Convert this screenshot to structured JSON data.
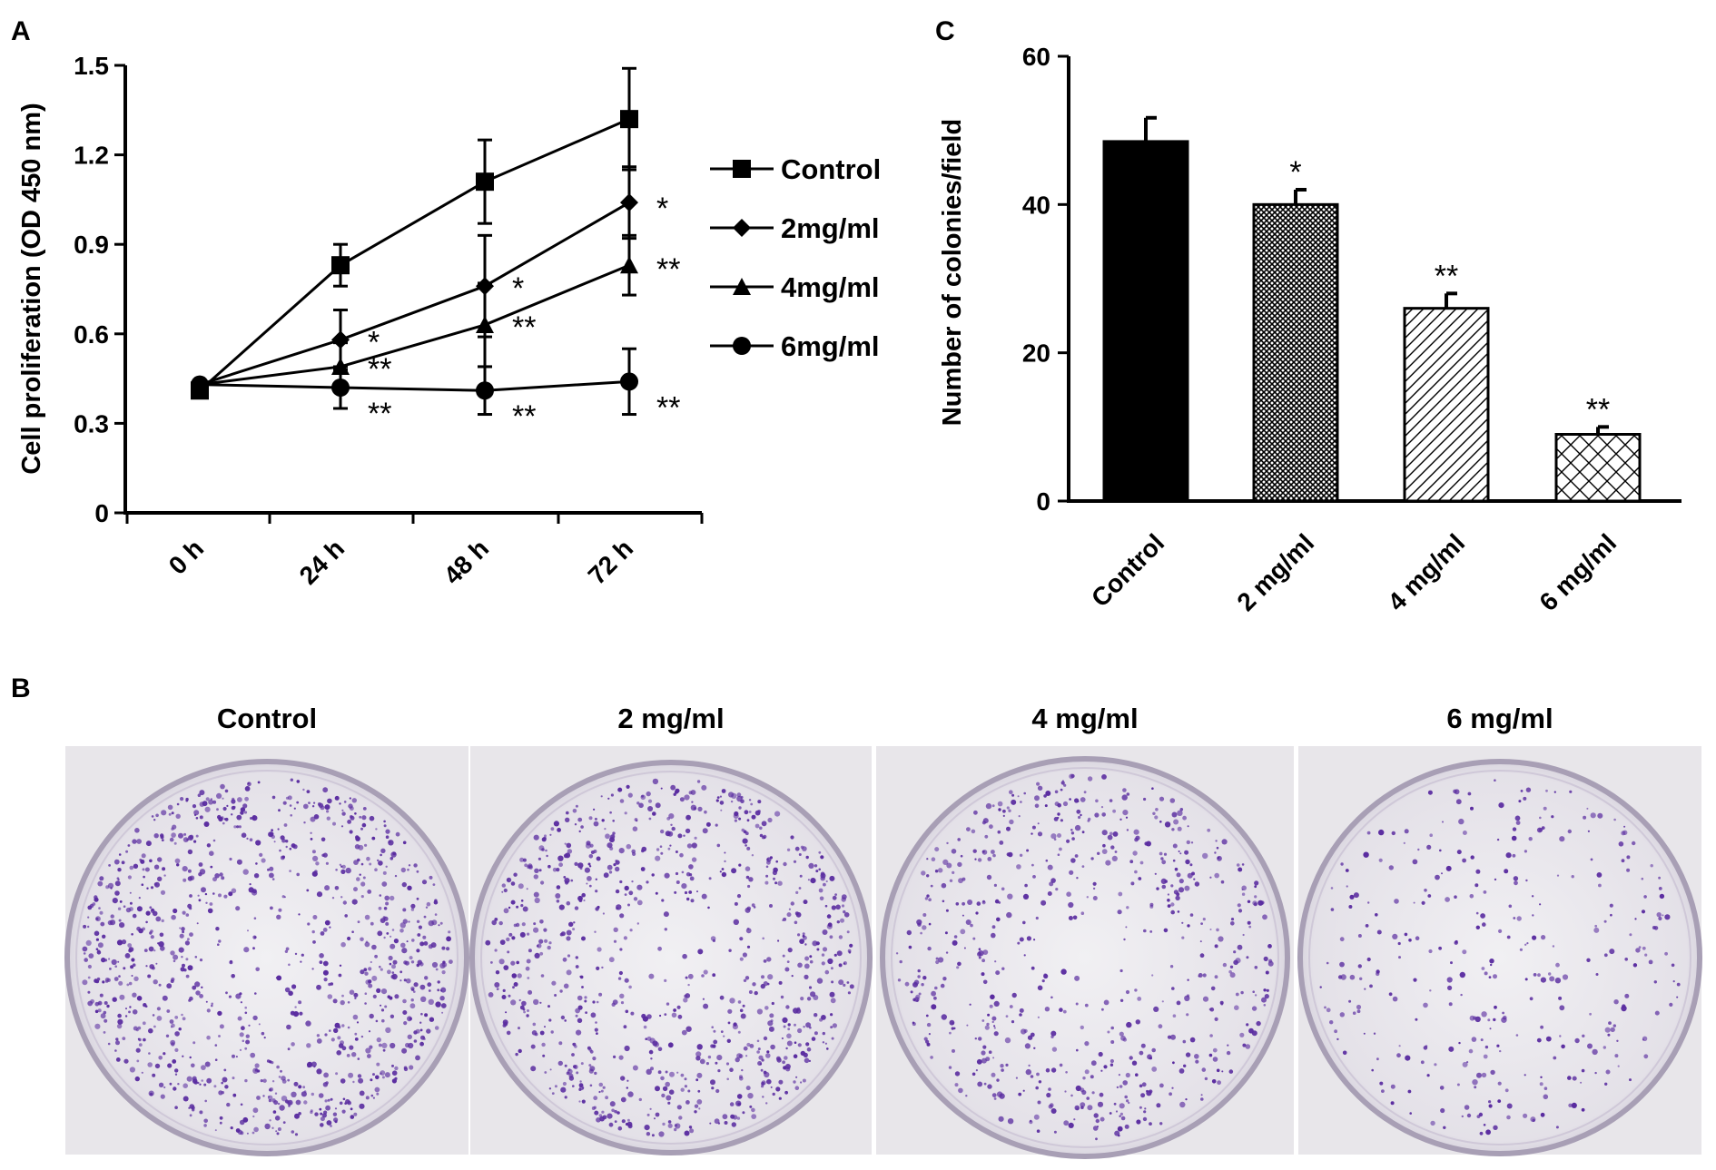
{
  "panels": {
    "A": {
      "label": "A"
    },
    "B": {
      "label": "B",
      "dishes": [
        {
          "title": "Control",
          "density": 0.95
        },
        {
          "title": "2 mg/ml",
          "density": 0.8
        },
        {
          "title": "4 mg/ml",
          "density": 0.55
        },
        {
          "title": "6 mg/ml",
          "density": 0.2
        }
      ]
    },
    "C": {
      "label": "C"
    }
  },
  "colors": {
    "line": "#000000",
    "stain": "#5a2ca0",
    "plate_bg": "#e8e6ea"
  },
  "chart_data": [
    {
      "type": "line",
      "panel": "A",
      "ylabel": "Cell proliferation  (OD 450 nm)",
      "xlabel": "",
      "categories": [
        "0 h",
        "24 h",
        "48 h",
        "72 h"
      ],
      "x_tick_count": 4,
      "ylim": [
        0,
        1.5
      ],
      "yticks": [
        "0",
        "0.3",
        "0.6",
        "0.9",
        "1.2",
        "1.5"
      ],
      "grid": false,
      "legend_position": "right",
      "series": [
        {
          "name": "Control",
          "marker": "square",
          "values": [
            0.41,
            0.83,
            1.11,
            1.32
          ],
          "errors": [
            0,
            0.07,
            0.14,
            0.17
          ],
          "sig": [
            "",
            "",
            "",
            ""
          ]
        },
        {
          "name": "2mg/ml",
          "marker": "diamond",
          "values": [
            0.43,
            0.58,
            0.76,
            1.04
          ],
          "errors": [
            0,
            0.1,
            0.17,
            0.12
          ],
          "sig": [
            "",
            "*",
            "*",
            "*"
          ]
        },
        {
          "name": "4mg/ml",
          "marker": "triangle",
          "values": [
            0.43,
            0.49,
            0.63,
            0.83
          ],
          "errors": [
            0,
            0.08,
            0.14,
            0.1
          ],
          "sig": [
            "",
            "**",
            "**",
            "**"
          ]
        },
        {
          "name": "6mg/ml",
          "marker": "circle",
          "values": [
            0.43,
            0.42,
            0.41,
            0.44
          ],
          "errors": [
            0,
            0.07,
            0.08,
            0.11
          ],
          "sig": [
            "",
            "**",
            "**",
            "**"
          ]
        }
      ]
    },
    {
      "type": "bar",
      "panel": "C",
      "ylabel": "Number of colonies/field",
      "xlabel": "",
      "categories": [
        "Control",
        "2 mg/ml",
        "4 mg/ml",
        "6 mg/ml"
      ],
      "values": [
        48.5,
        40,
        26,
        9
      ],
      "errors": [
        3.2,
        2,
        2,
        1
      ],
      "sig": [
        "",
        "*",
        "**",
        "**"
      ],
      "fills": [
        "solid",
        "crosshatch",
        "diagonal",
        "diamond"
      ],
      "ylim": [
        0,
        60
      ],
      "yticks": [
        "0",
        "20",
        "40",
        "60"
      ],
      "grid": false
    }
  ]
}
